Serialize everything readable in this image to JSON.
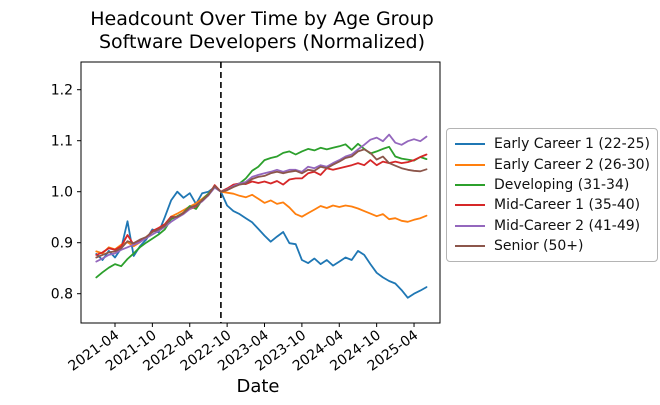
{
  "chart_data": {
    "type": "line",
    "title": "Headcount Over Time by Age Group",
    "subtitle": "Software Developers (Normalized)",
    "xlabel": "Date",
    "ylabel": "",
    "grid": false,
    "legend_position": "right of axes",
    "ylim": [
      0.74,
      1.255
    ],
    "y_ticks": [
      "0.8",
      "0.9",
      "1.0",
      "1.1",
      "1.2"
    ],
    "y_tick_values": [
      0.8,
      0.9,
      1.0,
      1.1,
      1.2
    ],
    "x_tick_labels": [
      "2021-04",
      "2021-10",
      "2022-04",
      "2022-10",
      "2023-04",
      "2023-10",
      "2024-04",
      "2024-10",
      "2025-04"
    ],
    "x_tick_indices": [
      3,
      9,
      15,
      21,
      27,
      33,
      39,
      45,
      51
    ],
    "vline": {
      "month": "2022-09",
      "index": 20,
      "style": "dashed",
      "color": "#000000"
    },
    "x": [
      "2021-01",
      "2021-02",
      "2021-03",
      "2021-04",
      "2021-05",
      "2021-06",
      "2021-07",
      "2021-08",
      "2021-09",
      "2021-10",
      "2021-11",
      "2021-12",
      "2022-01",
      "2022-02",
      "2022-03",
      "2022-04",
      "2022-05",
      "2022-06",
      "2022-07",
      "2022-08",
      "2022-09",
      "2022-10",
      "2022-11",
      "2022-12",
      "2023-01",
      "2023-02",
      "2023-03",
      "2023-04",
      "2023-05",
      "2023-06",
      "2023-07",
      "2023-08",
      "2023-09",
      "2023-10",
      "2023-11",
      "2023-12",
      "2024-01",
      "2024-02",
      "2024-03",
      "2024-04",
      "2024-05",
      "2024-06",
      "2024-07",
      "2024-08",
      "2024-09",
      "2024-10",
      "2024-11",
      "2024-12",
      "2025-01",
      "2025-02",
      "2025-03",
      "2025-04",
      "2025-05",
      "2025-06"
    ],
    "series": [
      {
        "name": "Early Career 1 (22-25)",
        "color": "#1f77b4",
        "values": [
          0.878,
          0.866,
          0.884,
          0.871,
          0.889,
          0.942,
          0.874,
          0.893,
          0.906,
          0.926,
          0.92,
          0.95,
          0.983,
          1.0,
          0.988,
          0.997,
          0.976,
          0.997,
          1.0,
          1.009,
          1.0,
          0.973,
          0.962,
          0.956,
          0.948,
          0.94,
          0.927,
          0.914,
          0.902,
          0.912,
          0.921,
          0.899,
          0.897,
          0.866,
          0.86,
          0.869,
          0.858,
          0.866,
          0.855,
          0.863,
          0.871,
          0.866,
          0.884,
          0.876,
          0.858,
          0.841,
          0.832,
          0.825,
          0.82,
          0.807,
          0.792,
          0.8,
          0.806,
          0.813
        ]
      },
      {
        "name": "Early Career 2 (26-30)",
        "color": "#ff7f0e",
        "values": [
          0.883,
          0.879,
          0.891,
          0.887,
          0.896,
          0.901,
          0.893,
          0.901,
          0.911,
          0.921,
          0.928,
          0.936,
          0.951,
          0.957,
          0.964,
          0.971,
          0.977,
          0.986,
          0.996,
          1.01,
          1.0,
          0.998,
          0.996,
          0.992,
          0.989,
          0.994,
          0.986,
          0.978,
          0.983,
          0.976,
          0.979,
          0.969,
          0.956,
          0.951,
          0.958,
          0.965,
          0.972,
          0.968,
          0.973,
          0.97,
          0.973,
          0.971,
          0.967,
          0.962,
          0.957,
          0.952,
          0.956,
          0.946,
          0.948,
          0.943,
          0.941,
          0.945,
          0.948,
          0.953
        ]
      },
      {
        "name": "Developing (31-34)",
        "color": "#2ca02c",
        "values": [
          0.832,
          0.842,
          0.851,
          0.858,
          0.854,
          0.868,
          0.879,
          0.891,
          0.9,
          0.908,
          0.916,
          0.926,
          0.946,
          0.952,
          0.959,
          0.972,
          0.966,
          0.984,
          0.996,
          1.009,
          1.0,
          1.006,
          1.013,
          1.016,
          1.026,
          1.041,
          1.049,
          1.062,
          1.066,
          1.069,
          1.076,
          1.079,
          1.073,
          1.079,
          1.084,
          1.081,
          1.086,
          1.083,
          1.086,
          1.089,
          1.093,
          1.082,
          1.094,
          1.084,
          1.075,
          1.079,
          1.084,
          1.088,
          1.069,
          1.065,
          1.063,
          1.061,
          1.068,
          1.064
        ]
      },
      {
        "name": "Mid-Career 1 (35-40)",
        "color": "#d62728",
        "values": [
          0.876,
          0.881,
          0.889,
          0.886,
          0.893,
          0.915,
          0.896,
          0.903,
          0.909,
          0.923,
          0.929,
          0.936,
          0.951,
          0.949,
          0.959,
          0.966,
          0.971,
          0.983,
          0.993,
          1.013,
          1.0,
          1.006,
          1.014,
          1.016,
          1.015,
          1.02,
          1.017,
          1.02,
          1.016,
          1.021,
          1.014,
          1.024,
          1.026,
          1.026,
          1.036,
          1.039,
          1.033,
          1.046,
          1.043,
          1.046,
          1.049,
          1.052,
          1.056,
          1.052,
          1.062,
          1.052,
          1.059,
          1.056,
          1.059,
          1.056,
          1.058,
          1.062,
          1.068,
          1.073
        ]
      },
      {
        "name": "Mid-Career 2 (41-49)",
        "color": "#9467bd",
        "values": [
          0.863,
          0.869,
          0.876,
          0.879,
          0.886,
          0.891,
          0.896,
          0.901,
          0.909,
          0.916,
          0.923,
          0.931,
          0.941,
          0.949,
          0.956,
          0.966,
          0.973,
          0.981,
          0.993,
          1.008,
          1.0,
          1.004,
          1.011,
          1.016,
          1.019,
          1.029,
          1.033,
          1.036,
          1.039,
          1.043,
          1.039,
          1.043,
          1.043,
          1.039,
          1.049,
          1.046,
          1.052,
          1.049,
          1.056,
          1.062,
          1.069,
          1.073,
          1.083,
          1.092,
          1.102,
          1.106,
          1.099,
          1.112,
          1.096,
          1.092,
          1.099,
          1.103,
          1.099,
          1.108
        ]
      },
      {
        "name": "Senior (50+)",
        "color": "#8c564b",
        "values": [
          0.871,
          0.876,
          0.881,
          0.883,
          0.889,
          0.903,
          0.899,
          0.906,
          0.911,
          0.921,
          0.926,
          0.933,
          0.949,
          0.951,
          0.958,
          0.969,
          0.973,
          0.983,
          0.994,
          1.011,
          1.0,
          1.003,
          1.009,
          1.014,
          1.016,
          1.025,
          1.029,
          1.031,
          1.036,
          1.039,
          1.036,
          1.039,
          1.041,
          1.036,
          1.043,
          1.041,
          1.049,
          1.046,
          1.053,
          1.059,
          1.066,
          1.069,
          1.079,
          1.083,
          1.076,
          1.063,
          1.069,
          1.056,
          1.051,
          1.046,
          1.043,
          1.041,
          1.04,
          1.044
        ]
      }
    ]
  }
}
